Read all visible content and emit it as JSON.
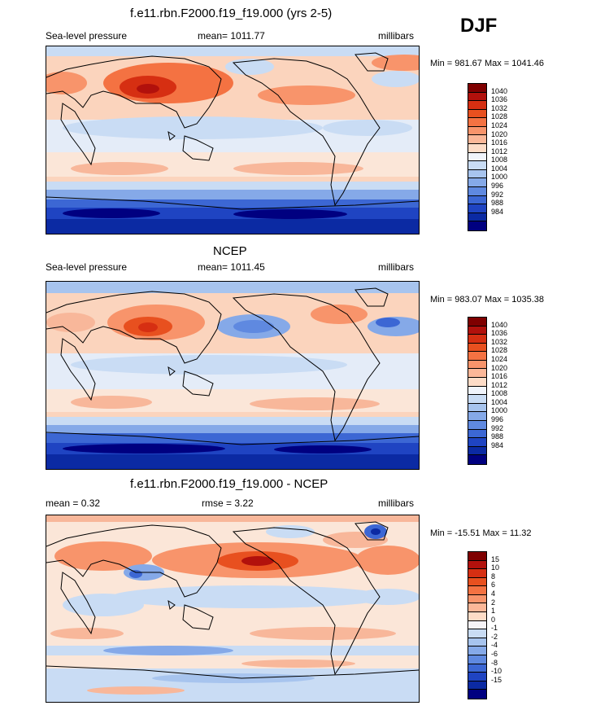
{
  "season": "DJF",
  "palette_main": [
    "#7f0000",
    "#b2110c",
    "#d62f12",
    "#e8501f",
    "#f47242",
    "#f8946b",
    "#fbb798",
    "#fddcc7",
    "#f0f4fb",
    "#c9dcf4",
    "#a7c4ee",
    "#85a9e8",
    "#5f89e0",
    "#3c67d4",
    "#1f44c2",
    "#0b2aa3",
    "#000080"
  ],
  "palette_diff": [
    "#7f0000",
    "#b2110c",
    "#d62f12",
    "#e8501f",
    "#f47242",
    "#f8946b",
    "#fbb798",
    "#fddcc7",
    "#f6f3f6",
    "#c9dcf4",
    "#a7c4ee",
    "#85a9e8",
    "#5f89e0",
    "#3c67d4",
    "#1f44c2",
    "#0b2aa3",
    "#000080"
  ],
  "panels": [
    {
      "title": "f.e11.rbn.F2000.f19_f19.000 (yrs 2-5)",
      "left": "Sea-level pressure",
      "center": "mean= 1011.77",
      "right": "millibars",
      "minmax": "Min = 981.67 Max = 1041.46",
      "ticks": [
        "1040",
        "1036",
        "1032",
        "1028",
        "1024",
        "1020",
        "1016",
        "1012",
        "1008",
        "1004",
        "1000",
        "996",
        "992",
        "988",
        "984"
      ]
    },
    {
      "title": "NCEP",
      "left": "Sea-level pressure",
      "center": "mean= 1011.45",
      "right": "millibars",
      "minmax": "Min = 983.07 Max = 1035.38",
      "ticks": [
        "1040",
        "1036",
        "1032",
        "1028",
        "1024",
        "1020",
        "1016",
        "1012",
        "1008",
        "1004",
        "1000",
        "996",
        "992",
        "988",
        "984"
      ]
    },
    {
      "title": "f.e11.rbn.F2000.f19_f19.000 - NCEP",
      "left": "mean =   0.32",
      "center": "rmse =   3.22",
      "right": "millibars",
      "minmax": "Min = -15.51 Max =  11.32",
      "ticks": [
        "15",
        "10",
        "8",
        "6",
        "4",
        "2",
        "1",
        "0",
        "-1",
        "-2",
        "-4",
        "-6",
        "-8",
        "-10",
        "-15"
      ]
    }
  ]
}
